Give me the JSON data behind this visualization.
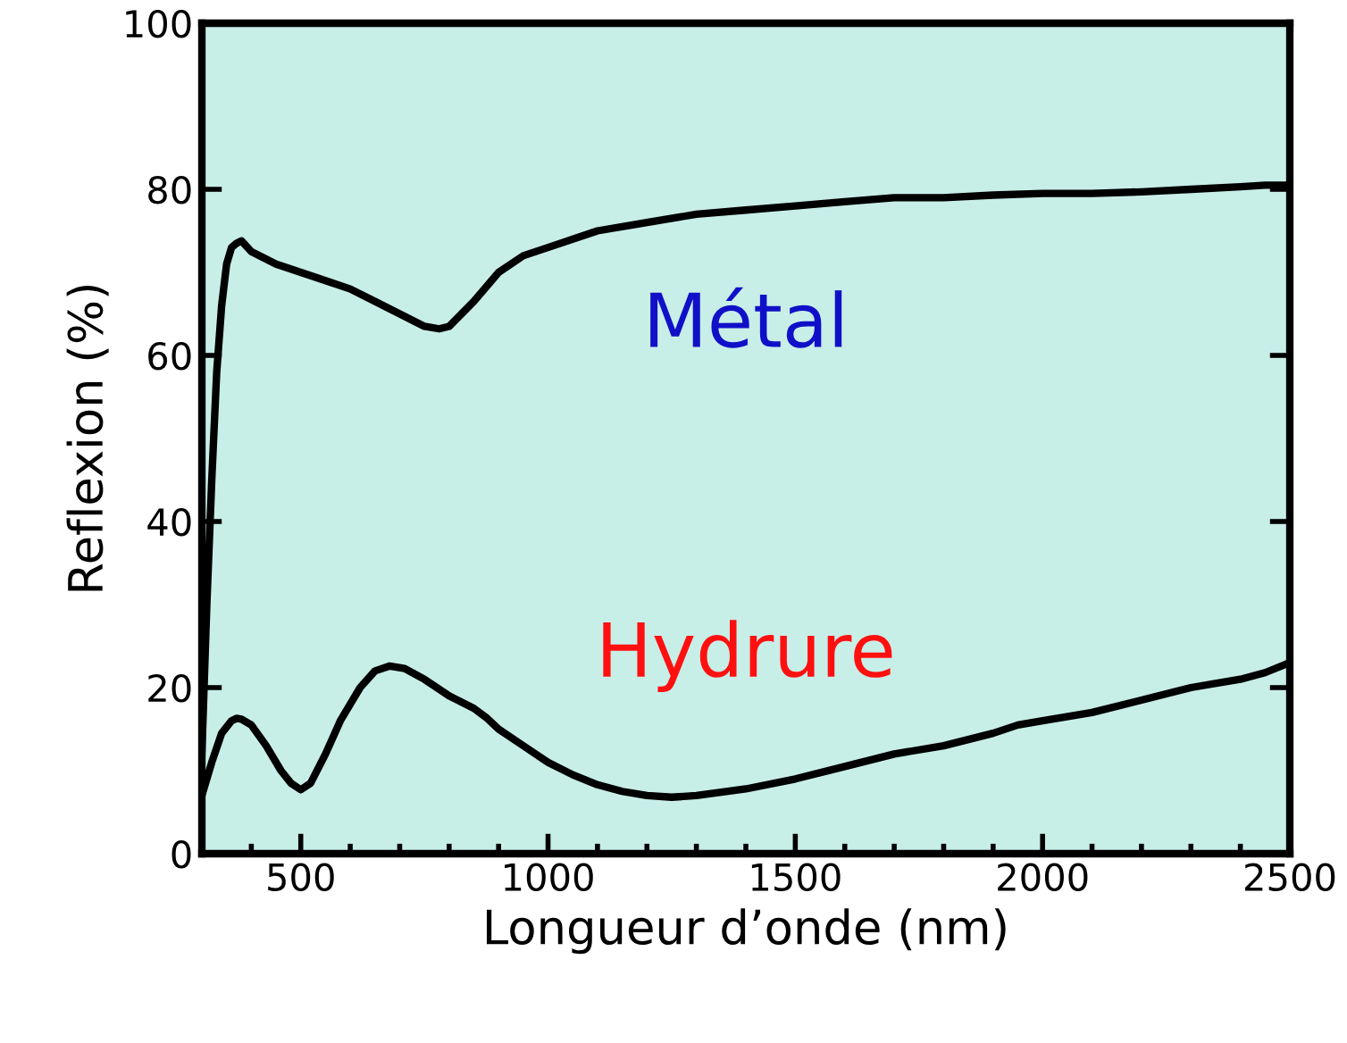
{
  "chart_data": {
    "type": "line",
    "xlabel": "Longueur d’onde (nm)",
    "ylabel": "Reflexion (%)",
    "xlim": [
      300,
      2500
    ],
    "xticks": [
      500,
      1000,
      1500,
      2000,
      2500
    ],
    "ylim": [
      0,
      100
    ],
    "yticks": [
      0,
      20,
      40,
      60,
      80,
      100
    ],
    "grid": false,
    "marker": "none",
    "line_style": "solid",
    "series": [
      {
        "name": "Métal",
        "color": "#000000",
        "x": [
          300,
          310,
          320,
          330,
          340,
          350,
          360,
          370,
          380,
          400,
          450,
          500,
          550,
          600,
          650,
          700,
          750,
          780,
          800,
          850,
          900,
          950,
          1000,
          1100,
          1200,
          1300,
          1400,
          1500,
          1600,
          1700,
          1800,
          1900,
          2000,
          2100,
          2200,
          2300,
          2400,
          2450,
          2500
        ],
        "values": [
          12,
          30,
          45,
          58,
          66,
          71,
          73,
          73.5,
          73.8,
          72.5,
          71,
          70,
          69,
          68,
          66.5,
          65,
          63.5,
          63.2,
          63.5,
          66.5,
          70,
          72,
          73,
          75,
          76,
          77,
          77.5,
          78,
          78.5,
          79,
          79,
          79.3,
          79.5,
          79.5,
          79.7,
          80,
          80.3,
          80.5,
          80.5
        ]
      },
      {
        "name": "Hydrure",
        "color": "#000000",
        "x": [
          300,
          320,
          340,
          360,
          370,
          380,
          400,
          430,
          460,
          480,
          500,
          520,
          550,
          580,
          620,
          650,
          680,
          710,
          750,
          800,
          850,
          877,
          900,
          950,
          1000,
          1050,
          1100,
          1150,
          1200,
          1250,
          1300,
          1400,
          1500,
          1600,
          1700,
          1800,
          1900,
          1950,
          2000,
          2100,
          2200,
          2300,
          2400,
          2450,
          2500
        ],
        "values": [
          7,
          11,
          14.5,
          16,
          16.3,
          16.2,
          15.5,
          13,
          10,
          8.5,
          7.7,
          8.5,
          12,
          16,
          20,
          22,
          22.6,
          22.3,
          21,
          19,
          17.5,
          16.3,
          15,
          13,
          11,
          9.5,
          8.3,
          7.5,
          7,
          6.8,
          7,
          7.8,
          9,
          10.5,
          12,
          13,
          14.5,
          15.5,
          16,
          17,
          18.5,
          20,
          21,
          21.8,
          23
        ]
      }
    ]
  }
}
